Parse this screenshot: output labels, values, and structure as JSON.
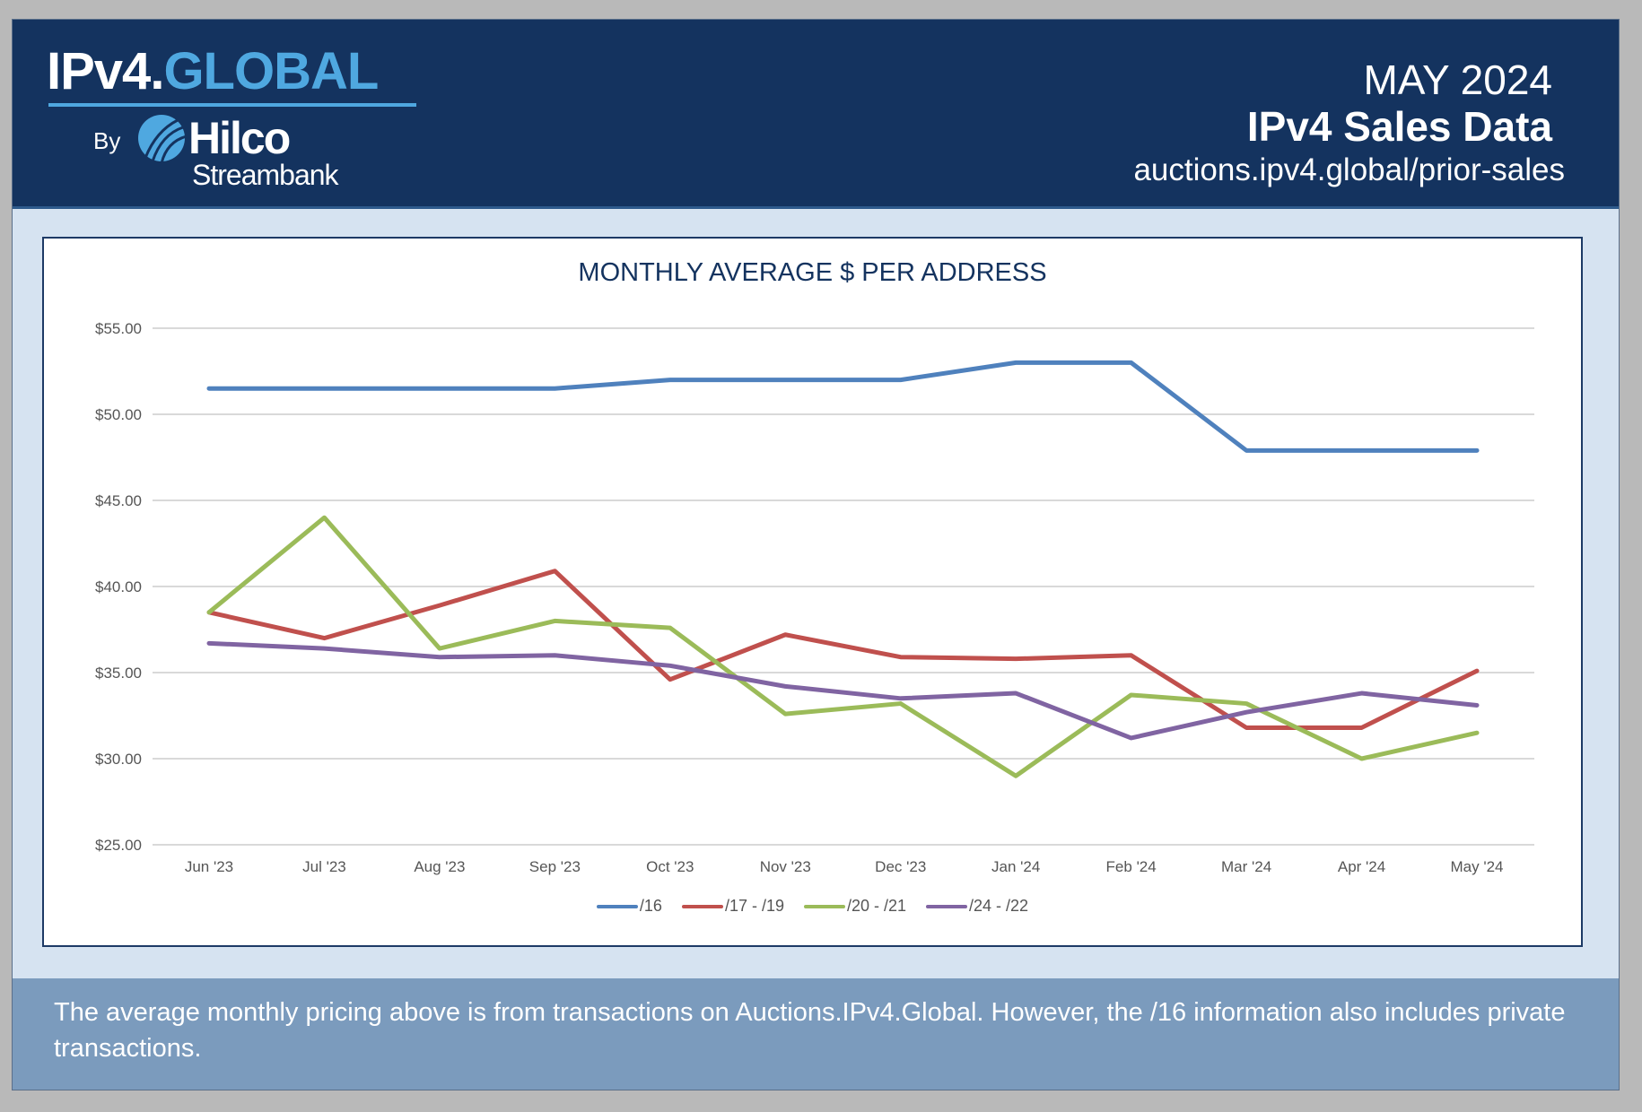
{
  "header": {
    "logo_ipv4": "IPv4.",
    "logo_global": "GLOBAL",
    "logo_by": "By",
    "logo_hilco": "Hilco",
    "logo_streambank": "Streambank",
    "month": "MAY 2024",
    "title": "IPv4 Sales Data",
    "url": "auctions.ipv4.global/prior-sales"
  },
  "footer": {
    "note": "The average monthly pricing above is from transactions on Auctions.IPv4.Global. However, the /16 information also includes private transactions."
  },
  "colors": {
    "navy": "#14335f",
    "accent": "#4fa8e0",
    "footer": "#7b9bbd"
  },
  "chart_data": {
    "type": "line",
    "title": "MONTHLY AVERAGE $ PER ADDRESS",
    "xlabel": "",
    "ylabel": "",
    "ylim": [
      25,
      55
    ],
    "yticks": [
      "$25.00",
      "$30.00",
      "$35.00",
      "$40.00",
      "$45.00",
      "$50.00",
      "$55.00"
    ],
    "ytick_values": [
      25,
      30,
      35,
      40,
      45,
      50,
      55
    ],
    "grid": true,
    "legend": "bottom",
    "categories": [
      "Jun '23",
      "Jul '23",
      "Aug '23",
      "Sep '23",
      "Oct '23",
      "Nov '23",
      "Dec '23",
      "Jan '24",
      "Feb '24",
      "Mar '24",
      "Apr '24",
      "May '24"
    ],
    "series": [
      {
        "name": "/16",
        "color": "#4f81bd",
        "values": [
          51.5,
          51.5,
          51.5,
          51.5,
          52.0,
          52.0,
          52.0,
          53.0,
          53.0,
          47.9,
          47.9,
          47.9
        ]
      },
      {
        "name": "/17 - /19",
        "color": "#c0504d",
        "values": [
          38.5,
          37.0,
          38.9,
          40.9,
          34.6,
          37.2,
          35.9,
          35.8,
          36.0,
          31.8,
          31.8,
          35.1
        ]
      },
      {
        "name": "/20 - /21",
        "color": "#9bbb59",
        "values": [
          38.5,
          44.0,
          36.4,
          38.0,
          37.6,
          32.6,
          33.2,
          29.0,
          33.7,
          33.2,
          30.0,
          31.5
        ]
      },
      {
        "name": "/24 - /22",
        "color": "#8064a2",
        "values": [
          36.7,
          36.4,
          35.9,
          36.0,
          35.4,
          34.2,
          33.5,
          33.8,
          31.2,
          32.7,
          33.8,
          33.1
        ]
      }
    ]
  }
}
